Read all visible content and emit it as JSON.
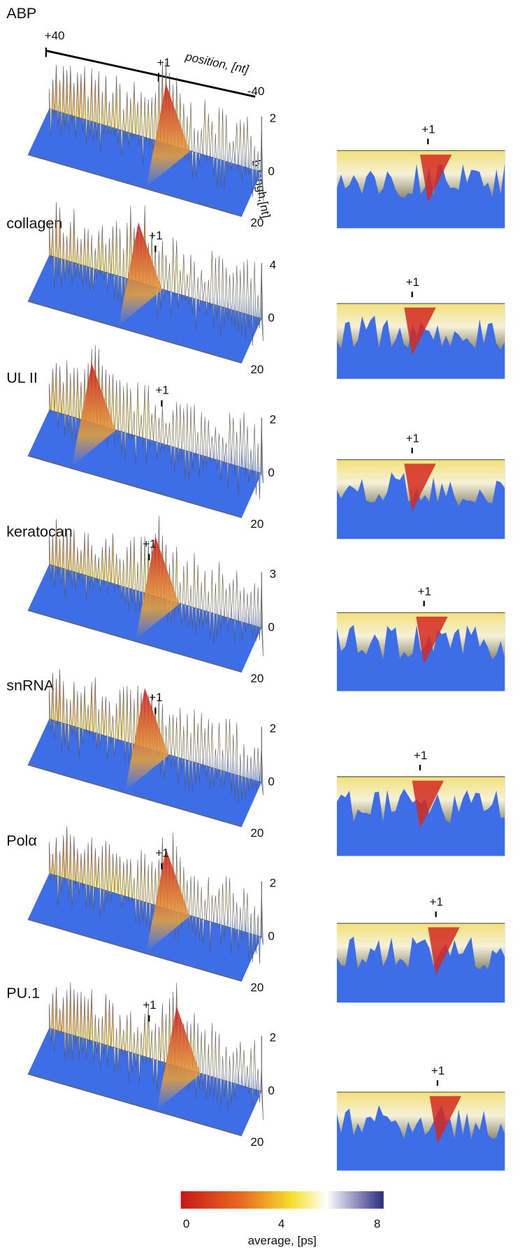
{
  "axis": {
    "position_label": "position, [nt]",
    "left_tick": "+40",
    "mid_tick": "+1",
    "right_tick": "-40",
    "depth_label": "b lengh,[nt]"
  },
  "panels": [
    {
      "name": "ABP",
      "top_tick": "2",
      "zero_tick": "0",
      "depth_tick": "20",
      "marker": "+1",
      "heat_marker": "+1"
    },
    {
      "name": "collagen",
      "top_tick": "4",
      "zero_tick": "0",
      "depth_tick": "20",
      "marker": "+1",
      "heat_marker": "+1"
    },
    {
      "name": "UL II",
      "top_tick": "2",
      "zero_tick": "0",
      "depth_tick": "20",
      "marker": "+1",
      "heat_marker": "+1"
    },
    {
      "name": "keratocan",
      "top_tick": "3",
      "zero_tick": "0",
      "depth_tick": "20",
      "marker": "+1",
      "heat_marker": "+1"
    },
    {
      "name": "snRNA",
      "top_tick": "2",
      "zero_tick": "0",
      "depth_tick": "20",
      "marker": "+1",
      "heat_marker": "+1"
    },
    {
      "name": "Polα",
      "top_tick": "2",
      "zero_tick": "0",
      "depth_tick": "20",
      "marker": "+1",
      "heat_marker": "+1"
    },
    {
      "name": "PU.1",
      "top_tick": "2",
      "zero_tick": "0",
      "depth_tick": "20",
      "marker": "+1",
      "heat_marker": "+1"
    }
  ],
  "colorbar": {
    "ticks": [
      "0",
      "4",
      "8"
    ],
    "label": "average, [ps]"
  }
}
